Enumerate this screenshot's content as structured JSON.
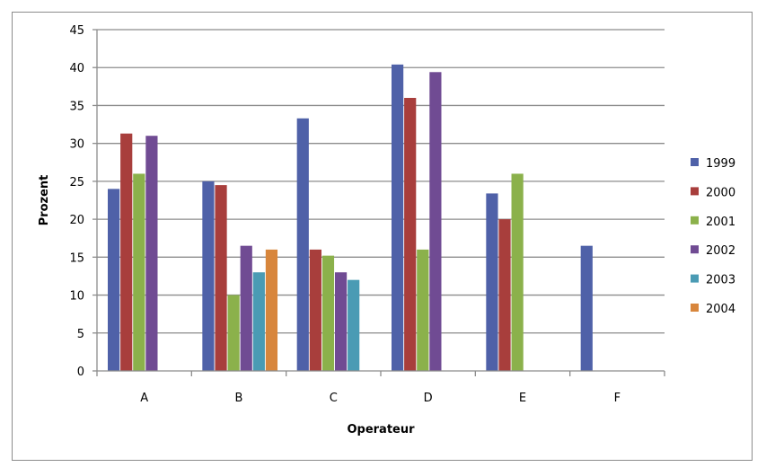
{
  "chart_data": {
    "type": "bar",
    "title": "",
    "xlabel": "Operateur",
    "ylabel": "Prozent",
    "ylim": [
      0,
      45
    ],
    "yticks": [
      0,
      5,
      10,
      15,
      20,
      25,
      30,
      35,
      40,
      45
    ],
    "grid": true,
    "legend_position": "right",
    "categories": [
      "A",
      "B",
      "C",
      "D",
      "E",
      "F"
    ],
    "series": [
      {
        "name": "1999",
        "color": "#4f61a8",
        "values": [
          24,
          25,
          33.3,
          40.4,
          23.4,
          16.5
        ]
      },
      {
        "name": "2000",
        "color": "#a83e3c",
        "values": [
          31.3,
          24.5,
          16,
          36,
          20,
          null
        ]
      },
      {
        "name": "2001",
        "color": "#8bb14b",
        "values": [
          26,
          10,
          15.2,
          16,
          26,
          null
        ]
      },
      {
        "name": "2002",
        "color": "#704b93",
        "values": [
          31,
          16.5,
          13,
          39.4,
          null,
          null
        ]
      },
      {
        "name": "2003",
        "color": "#4a9bb4",
        "values": [
          null,
          13,
          12,
          null,
          null,
          null
        ]
      },
      {
        "name": "2004",
        "color": "#d8863c",
        "values": [
          null,
          16,
          null,
          null,
          null,
          null
        ]
      }
    ]
  }
}
